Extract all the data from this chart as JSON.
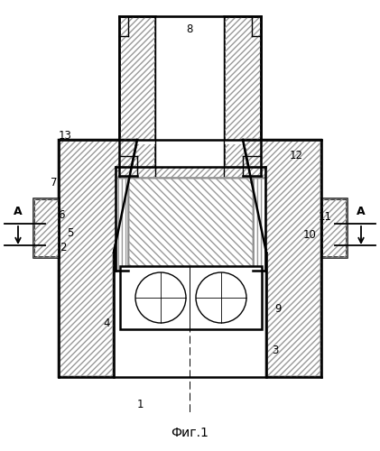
{
  "title": "Фиг.1",
  "bg": "#ffffff",
  "lc": "#000000",
  "fig_w": 4.21,
  "fig_h": 5.0,
  "dpi": 100,
  "labels": [
    [
      "1",
      155,
      448
    ],
    [
      "2",
      70,
      275
    ],
    [
      "3",
      305,
      388
    ],
    [
      "4",
      118,
      358
    ],
    [
      "5",
      78,
      258
    ],
    [
      "6",
      68,
      238
    ],
    [
      "7",
      60,
      203
    ],
    [
      "8",
      210,
      33
    ],
    [
      "9",
      308,
      342
    ],
    [
      "10",
      343,
      260
    ],
    [
      "11",
      360,
      240
    ],
    [
      "12",
      328,
      172
    ],
    [
      "13",
      72,
      150
    ]
  ]
}
